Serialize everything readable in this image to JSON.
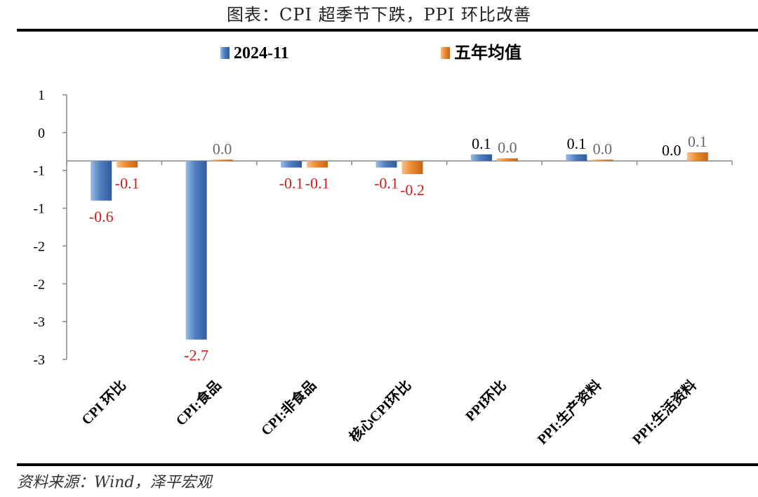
{
  "header": {
    "title": "图表：CPI 超季节下跌，PPI 环比改善"
  },
  "footer": {
    "source": "资料来源：Wind，泽平宏观"
  },
  "colors": {
    "series_1": "#4f7fbf",
    "series_2": "#ee8a2e",
    "negative_label": "#d11a1a",
    "positive_label_series_1": "#000000",
    "positive_label_series_2": "#666666"
  },
  "chart_data": {
    "type": "bar",
    "title": "",
    "xlabel": "",
    "ylabel": "",
    "ylim": [
      -3,
      1
    ],
    "y_tick_labels": [
      "1",
      "0",
      "-1",
      "-1",
      "-2",
      "-2",
      "-3",
      "-3"
    ],
    "grid": false,
    "legend_position": "top",
    "categories": [
      "CPI 环比",
      "CPI:食品",
      "CPI:非食品",
      "核心CPI环比",
      "PPI环比",
      "PPI:生产资料",
      "PPI:生活资料"
    ],
    "series": [
      {
        "name": "2024-11",
        "values": [
          -0.6,
          -2.7,
          -0.1,
          -0.1,
          0.1,
          0.1,
          0.0
        ],
        "labels": [
          "-0.6",
          "-2.7",
          "-0.1",
          "-0.1",
          "0.1",
          "0.1",
          "0.0"
        ]
      },
      {
        "name": "五年均值",
        "values": [
          -0.1,
          0.02,
          -0.1,
          -0.2,
          0.04,
          0.02,
          0.13
        ],
        "labels": [
          "-0.1",
          "0.0",
          "-0.1",
          "-0.2",
          "0.0",
          "0.0",
          "0.1"
        ]
      }
    ]
  }
}
